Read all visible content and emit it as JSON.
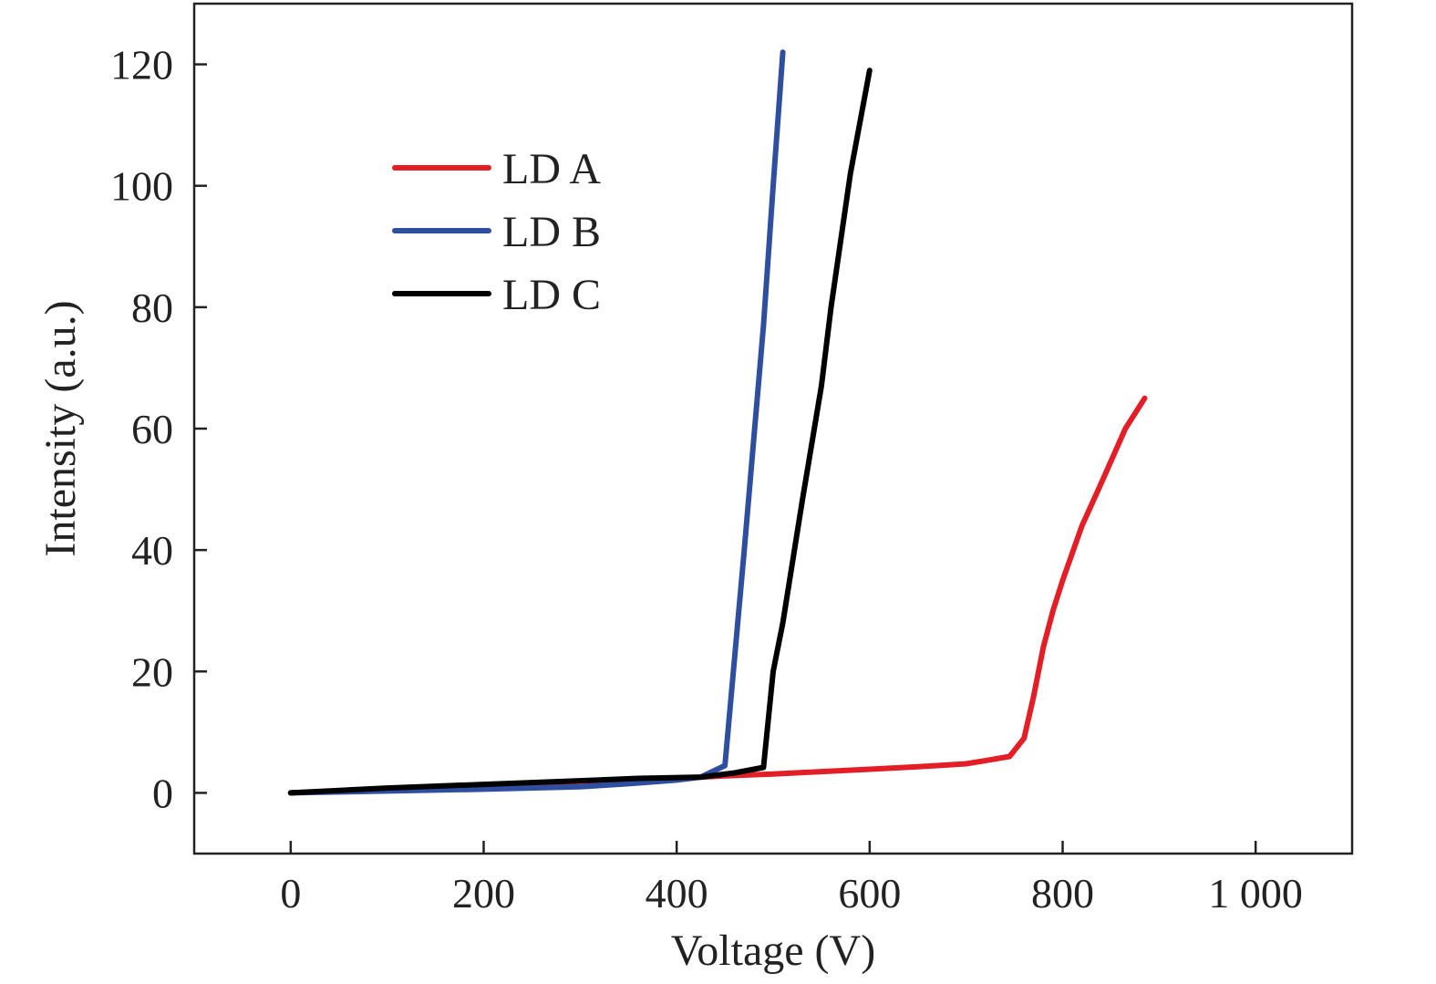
{
  "chart_data": {
    "type": "line",
    "xlabel": "Voltage (V)",
    "ylabel": "Intensity (a.u.)",
    "xlim": [
      -100,
      1100
    ],
    "ylim": [
      -10,
      130
    ],
    "xticks": [
      0,
      200,
      400,
      600,
      800,
      1000
    ],
    "xtick_labels": [
      "0",
      "200",
      "400",
      "600",
      "800",
      "1 000"
    ],
    "yticks": [
      0,
      20,
      40,
      60,
      80,
      100,
      120
    ],
    "ytick_labels": [
      "0",
      "20",
      "40",
      "60",
      "80",
      "100",
      "120"
    ],
    "grid": false,
    "legend_position": "upper-left",
    "series": [
      {
        "name": "LD A",
        "color": "#e41e26",
        "x": [
          0,
          100,
          200,
          300,
          400,
          450,
          500,
          550,
          600,
          650,
          700,
          720,
          745,
          760,
          770,
          780,
          790,
          800,
          820,
          840,
          865,
          885
        ],
        "y": [
          0,
          0.6,
          1.3,
          1.9,
          2.4,
          2.8,
          3.1,
          3.5,
          3.9,
          4.3,
          4.8,
          5.3,
          6,
          9,
          16,
          24,
          30,
          35,
          44,
          51,
          60,
          65
        ]
      },
      {
        "name": "LD B",
        "color": "#2e4ea0",
        "x": [
          0,
          100,
          200,
          300,
          350,
          400,
          425,
          450,
          470,
          490,
          500,
          510
        ],
        "y": [
          0,
          0.3,
          0.6,
          1,
          1.5,
          2.1,
          2.6,
          4.5,
          40,
          77,
          100,
          122
        ]
      },
      {
        "name": "LD C",
        "color": "#000000",
        "x": [
          0,
          100,
          200,
          300,
          360,
          425,
          460,
          490,
          500,
          510,
          530,
          550,
          560,
          580,
          600
        ],
        "y": [
          0,
          0.8,
          1.4,
          2.0,
          2.4,
          2.6,
          3.3,
          4.2,
          20,
          28,
          48,
          67,
          80,
          102,
          119
        ]
      }
    ]
  }
}
